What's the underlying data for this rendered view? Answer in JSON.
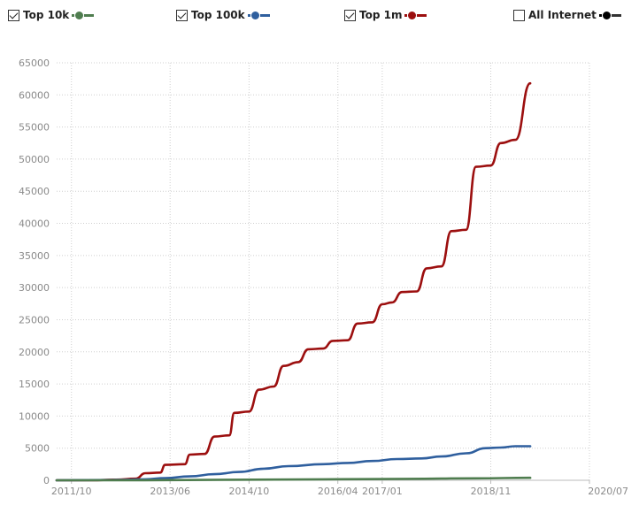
{
  "legend": [
    {
      "label": "Top 10k",
      "checked": true,
      "color": "#4f7d4f"
    },
    {
      "label": "Top 100k",
      "checked": true,
      "color": "#2f5f9e"
    },
    {
      "label": "Top 1m",
      "checked": true,
      "color": "#9c0f0f"
    },
    {
      "label": "All Internet",
      "checked": false,
      "color": "#000000"
    }
  ],
  "chart_data": {
    "type": "line",
    "xlabel": "",
    "ylabel": "",
    "ylim": [
      0,
      65000
    ],
    "yticks": [
      "0",
      "5000",
      "10000",
      "15000",
      "20000",
      "25000",
      "30000",
      "35000",
      "40000",
      "45000",
      "50000",
      "55000",
      "60000",
      "65000"
    ],
    "xlim": [
      "2011/07",
      "2020/07"
    ],
    "xticks": [
      "2011/10",
      "2013/06",
      "2014/10",
      "2016/04",
      "2017/01",
      "2018/11",
      "2020/07"
    ],
    "grid": true,
    "legend_position": "top",
    "series": [
      {
        "name": "Top 1m",
        "color": "#9c0f0f",
        "points": [
          [
            "2011/07",
            0
          ],
          [
            "2012/02",
            0
          ],
          [
            "2012/07",
            100
          ],
          [
            "2012/11",
            250
          ],
          [
            "2013/01",
            1100
          ],
          [
            "2013/04",
            1200
          ],
          [
            "2013/05",
            2400
          ],
          [
            "2013/09",
            2500
          ],
          [
            "2013/10",
            4000
          ],
          [
            "2014/01",
            4100
          ],
          [
            "2014/03",
            6800
          ],
          [
            "2014/06",
            7000
          ],
          [
            "2014/07",
            10500
          ],
          [
            "2014/10",
            10700
          ],
          [
            "2014/12",
            14100
          ],
          [
            "2015/03",
            14600
          ],
          [
            "2015/05",
            17800
          ],
          [
            "2015/08",
            18400
          ],
          [
            "2015/10",
            20400
          ],
          [
            "2016/01",
            20500
          ],
          [
            "2016/03",
            21700
          ],
          [
            "2016/06",
            21800
          ],
          [
            "2016/08",
            24400
          ],
          [
            "2016/11",
            24600
          ],
          [
            "2017/01",
            27400
          ],
          [
            "2017/03",
            27700
          ],
          [
            "2017/05",
            29300
          ],
          [
            "2017/08",
            29400
          ],
          [
            "2017/10",
            33000
          ],
          [
            "2018/01",
            33300
          ],
          [
            "2018/03",
            38800
          ],
          [
            "2018/06",
            39000
          ],
          [
            "2018/08",
            48800
          ],
          [
            "2018/11",
            49000
          ],
          [
            "2019/01",
            52500
          ],
          [
            "2019/04",
            53000
          ],
          [
            "2019/07",
            61800
          ]
        ]
      },
      {
        "name": "Top 100k",
        "color": "#2f5f9e",
        "points": [
          [
            "2011/07",
            0
          ],
          [
            "2012/07",
            50
          ],
          [
            "2013/01",
            150
          ],
          [
            "2013/05",
            350
          ],
          [
            "2013/10",
            600
          ],
          [
            "2014/03",
            950
          ],
          [
            "2014/08",
            1300
          ],
          [
            "2015/01",
            1800
          ],
          [
            "2015/06",
            2200
          ],
          [
            "2016/01",
            2500
          ],
          [
            "2016/06",
            2700
          ],
          [
            "2016/11",
            3000
          ],
          [
            "2017/04",
            3300
          ],
          [
            "2017/09",
            3400
          ],
          [
            "2018/01",
            3700
          ],
          [
            "2018/06",
            4200
          ],
          [
            "2018/10",
            5000
          ],
          [
            "2019/01",
            5100
          ],
          [
            "2019/04",
            5300
          ],
          [
            "2019/07",
            5300
          ]
        ]
      },
      {
        "name": "Top 10k",
        "color": "#4f7d4f",
        "points": [
          [
            "2011/07",
            0
          ],
          [
            "2013/01",
            20
          ],
          [
            "2014/06",
            80
          ],
          [
            "2016/01",
            150
          ],
          [
            "2017/06",
            220
          ],
          [
            "2018/08",
            300
          ],
          [
            "2019/07",
            380
          ]
        ]
      }
    ]
  }
}
